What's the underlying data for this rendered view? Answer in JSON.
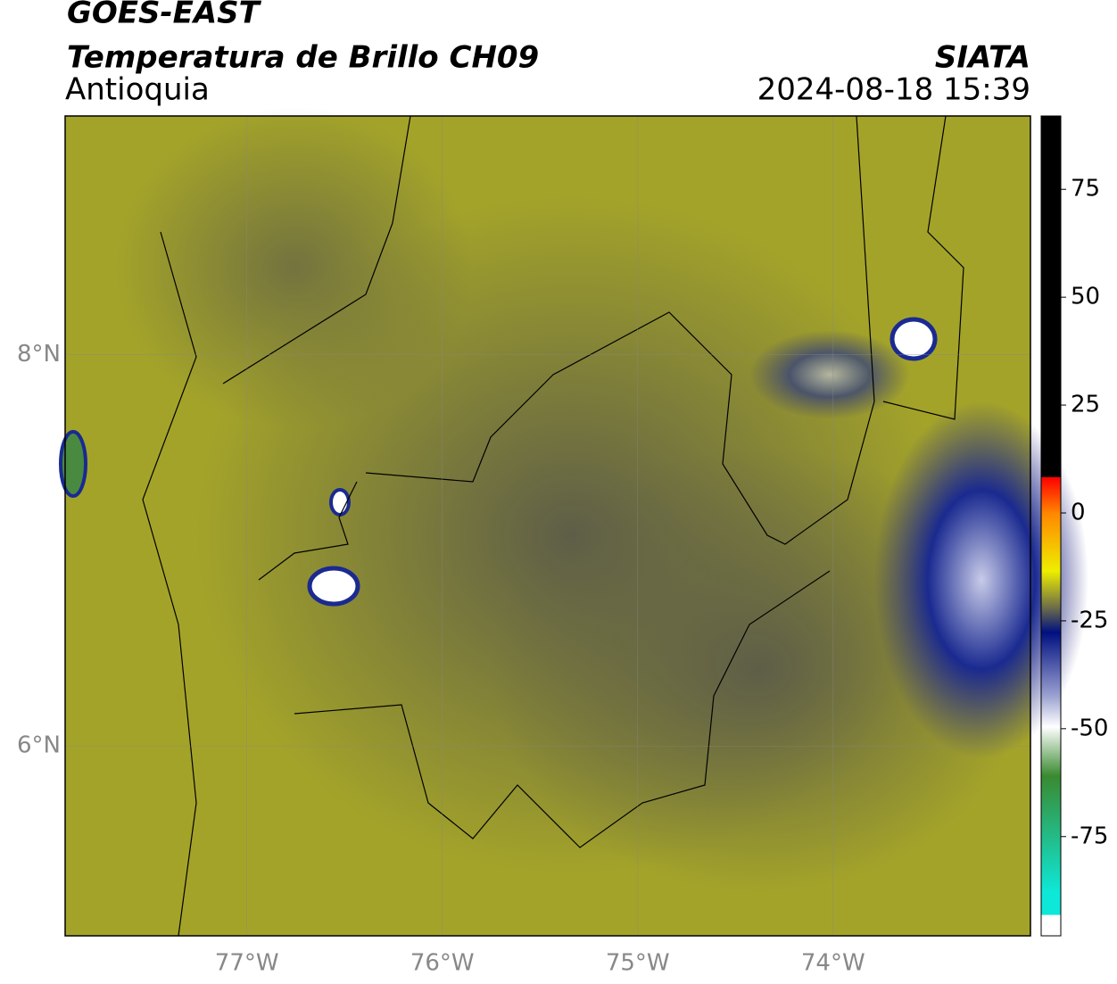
{
  "header": {
    "title": "GOES-EAST",
    "subtitle": "Temperatura de Brillo CH09",
    "region": "Antioquia",
    "source": "SIATA",
    "datetime": "2024-08-18 15:39"
  },
  "map": {
    "xlim": [
      -77.93,
      -72.99
    ],
    "ylim": [
      5.03,
      9.22
    ],
    "xticks": [
      {
        "value": -77,
        "label": "77°W"
      },
      {
        "value": -76,
        "label": "76°W"
      },
      {
        "value": -75,
        "label": "75°W"
      },
      {
        "value": -74,
        "label": "74°W"
      }
    ],
    "yticks": [
      {
        "value": 6,
        "label": "6°N"
      },
      {
        "value": 8,
        "label": "8°N"
      }
    ],
    "grid": true
  },
  "colorbar": {
    "lim": [
      -98,
      92
    ],
    "ticks": [
      75,
      50,
      25,
      0,
      -25,
      -50,
      -75
    ]
  }
}
